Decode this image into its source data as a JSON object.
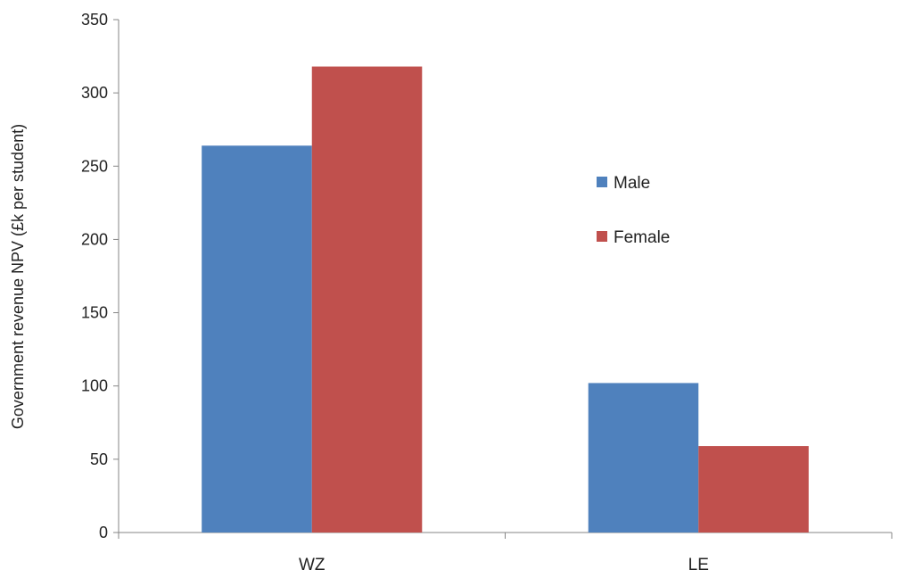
{
  "chart_data": {
    "type": "bar",
    "categories": [
      "WZ",
      "LE"
    ],
    "series": [
      {
        "name": "Male",
        "color": "#4f81bd",
        "values": [
          264,
          102
        ]
      },
      {
        "name": "Female",
        "color": "#c0504d",
        "values": [
          318,
          59
        ]
      }
    ],
    "ylabel": "Government  revenue NPV (£k per student)",
    "xlabel": "",
    "ylim": [
      0,
      350
    ],
    "yticks": [
      0,
      50,
      100,
      150,
      200,
      250,
      300,
      350
    ],
    "grid": false,
    "legend_position": "right"
  }
}
